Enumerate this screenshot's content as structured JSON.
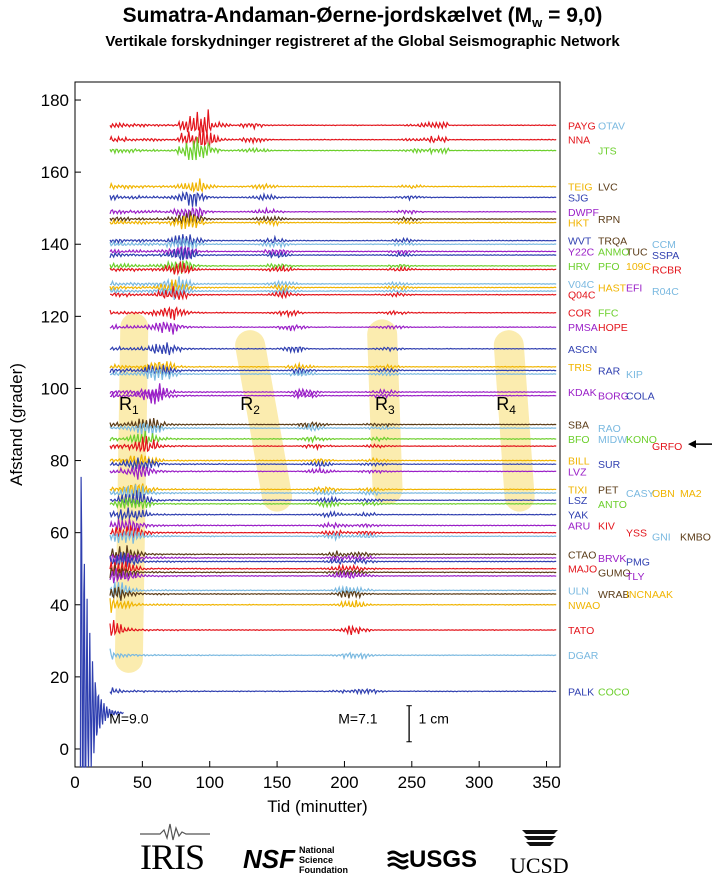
{
  "header": {
    "title_main": "Sumatra-Andaman-Øerne-jordskælvet (M",
    "title_sub": "w",
    "title_end": " = 9,0)",
    "subtitle": "Vertikale forskydninger registreret af the Global Seismographic Network"
  },
  "chart_data": {
    "type": "line",
    "xlabel": "Tid (minutter)",
    "ylabel": "Afstand (grader)",
    "xlim": [
      0,
      360
    ],
    "ylim": [
      -5,
      185
    ],
    "xticks": [
      0,
      50,
      100,
      150,
      200,
      250,
      300,
      350
    ],
    "yticks": [
      0,
      20,
      40,
      60,
      80,
      100,
      120,
      140,
      160,
      180
    ],
    "surface_waves": [
      {
        "label": "R",
        "sub": "1",
        "x": 40,
        "y": 94
      },
      {
        "label": "R",
        "sub": "2",
        "x": 130,
        "y": 94
      },
      {
        "label": "R",
        "sub": "3",
        "x": 230,
        "y": 94
      },
      {
        "label": "R",
        "sub": "4",
        "x": 320,
        "y": 94
      }
    ],
    "annotations": [
      {
        "text": "M=9.0",
        "x": 40,
        "y": 7
      },
      {
        "text": "M=7.1",
        "x": 210,
        "y": 7
      },
      {
        "text": "1 cm",
        "x": 255,
        "y": 7
      },
      {
        "text": "←",
        "x": 0,
        "y": 0
      }
    ],
    "stations": [
      {
        "name": "PAYG",
        "dist": 173,
        "color": "#e3141b",
        "col": 0
      },
      {
        "name": "OTAV",
        "dist": 173,
        "color": "#7ab9e0",
        "col": 1
      },
      {
        "name": "NNA",
        "dist": 169,
        "color": "#e3141b",
        "col": 0
      },
      {
        "name": "JTS",
        "dist": 166,
        "color": "#6ccf2c",
        "col": 1
      },
      {
        "name": "TEIG",
        "dist": 156,
        "color": "#f0b400",
        "col": 0
      },
      {
        "name": "LVC",
        "dist": 156,
        "color": "#5a3b17",
        "col": 1
      },
      {
        "name": "SJG",
        "dist": 153,
        "color": "#2f3fb0",
        "col": 0
      },
      {
        "name": "DWPF",
        "dist": 149,
        "color": "#9a1fc7",
        "col": 0
      },
      {
        "name": "RPN",
        "dist": 147,
        "color": "#5a3b17",
        "col": 1
      },
      {
        "name": "HKT",
        "dist": 146,
        "color": "#f0b400",
        "col": 0
      },
      {
        "name": "WVT",
        "dist": 141,
        "color": "#2f3fb0",
        "col": 0
      },
      {
        "name": "TRQA",
        "dist": 141,
        "color": "#5a3b17",
        "col": 1
      },
      {
        "name": "CCM",
        "dist": 140,
        "color": "#7ab9e0",
        "col": 3
      },
      {
        "name": "Y22C",
        "dist": 138,
        "color": "#9a1fc7",
        "col": 0
      },
      {
        "name": "ANMO",
        "dist": 138,
        "color": "#6ccf2c",
        "col": 1
      },
      {
        "name": "TUC",
        "dist": 138,
        "color": "#5a3b17",
        "col": 2
      },
      {
        "name": "SSPA",
        "dist": 137,
        "color": "#2f3fb0",
        "col": 3
      },
      {
        "name": "HRV",
        "dist": 134,
        "color": "#6ccf2c",
        "col": 0
      },
      {
        "name": "PFO",
        "dist": 134,
        "color": "#6ccf2c",
        "col": 1
      },
      {
        "name": "109C",
        "dist": 134,
        "color": "#f0b400",
        "col": 2
      },
      {
        "name": "RCBR",
        "dist": 133,
        "color": "#e3141b",
        "col": 3
      },
      {
        "name": "V04C",
        "dist": 129,
        "color": "#7ab9e0",
        "col": 0
      },
      {
        "name": "HAST",
        "dist": 128,
        "color": "#f0b400",
        "col": 1
      },
      {
        "name": "EFI",
        "dist": 128,
        "color": "#9a1fc7",
        "col": 2
      },
      {
        "name": "R04C",
        "dist": 127,
        "color": "#7ab9e0",
        "col": 3
      },
      {
        "name": "Q04C",
        "dist": 126,
        "color": "#e3141b",
        "col": 0
      },
      {
        "name": "COR",
        "dist": 121,
        "color": "#e3141b",
        "col": 0
      },
      {
        "name": "FFC",
        "dist": 121,
        "color": "#6ccf2c",
        "col": 1
      },
      {
        "name": "PMSA",
        "dist": 117,
        "color": "#9a1fc7",
        "col": 0
      },
      {
        "name": "HOPE",
        "dist": 117,
        "color": "#e3141b",
        "col": 1
      },
      {
        "name": "ASCN",
        "dist": 111,
        "color": "#2f3fb0",
        "col": 0
      },
      {
        "name": "TRIS",
        "dist": 106,
        "color": "#f0b400",
        "col": 0
      },
      {
        "name": "RAR",
        "dist": 105,
        "color": "#2f3fb0",
        "col": 1
      },
      {
        "name": "KIP",
        "dist": 104,
        "color": "#7ab9e0",
        "col": 2
      },
      {
        "name": "KDAK",
        "dist": 99,
        "color": "#9a1fc7",
        "col": 0
      },
      {
        "name": "BORG",
        "dist": 98,
        "color": "#9a1fc7",
        "col": 1
      },
      {
        "name": "COLA",
        "dist": 98,
        "color": "#2f3fb0",
        "col": 2
      },
      {
        "name": "SBA",
        "dist": 90,
        "color": "#5a3b17",
        "col": 0
      },
      {
        "name": "RAO",
        "dist": 89,
        "color": "#7ab9e0",
        "col": 1
      },
      {
        "name": "BFO",
        "dist": 86,
        "color": "#6ccf2c",
        "col": 0
      },
      {
        "name": "MIDW",
        "dist": 86,
        "color": "#7ab9e0",
        "col": 1
      },
      {
        "name": "KONO",
        "dist": 86,
        "color": "#6ccf2c",
        "col": 2
      },
      {
        "name": "GRFO",
        "dist": 84,
        "color": "#e3141b",
        "col": 3
      },
      {
        "name": "BILL",
        "dist": 80,
        "color": "#f0b400",
        "col": 0
      },
      {
        "name": "SUR",
        "dist": 79,
        "color": "#2f3fb0",
        "col": 1
      },
      {
        "name": "LVZ",
        "dist": 77,
        "color": "#9a1fc7",
        "col": 0
      },
      {
        "name": "TIXI",
        "dist": 72,
        "color": "#f0b400",
        "col": 0
      },
      {
        "name": "PET",
        "dist": 72,
        "color": "#5a3b17",
        "col": 1
      },
      {
        "name": "CASY",
        "dist": 71,
        "color": "#7ab9e0",
        "col": 2
      },
      {
        "name": "OBN",
        "dist": 71,
        "color": "#f0b400",
        "col": 3
      },
      {
        "name": "MA2",
        "dist": 71,
        "color": "#f0b400",
        "col": 4
      },
      {
        "name": "LSZ",
        "dist": 69,
        "color": "#2f3fb0",
        "col": 0
      },
      {
        "name": "ANTO",
        "dist": 68,
        "color": "#6ccf2c",
        "col": 1
      },
      {
        "name": "YAK",
        "dist": 65,
        "color": "#2f3fb0",
        "col": 0
      },
      {
        "name": "ARU",
        "dist": 62,
        "color": "#9a1fc7",
        "col": 0
      },
      {
        "name": "KIV",
        "dist": 62,
        "color": "#e3141b",
        "col": 1
      },
      {
        "name": "YSS",
        "dist": 60,
        "color": "#e3141b",
        "col": 2
      },
      {
        "name": "GNI",
        "dist": 59,
        "color": "#7ab9e0",
        "col": 3
      },
      {
        "name": "KMBO",
        "dist": 59,
        "color": "#5a3b17",
        "col": 4
      },
      {
        "name": "CTAO",
        "dist": 54,
        "color": "#5a3b17",
        "col": 0
      },
      {
        "name": "BRVK",
        "dist": 53,
        "color": "#9a1fc7",
        "col": 1
      },
      {
        "name": "PMG",
        "dist": 52,
        "color": "#2f3fb0",
        "col": 2
      },
      {
        "name": "MAJO",
        "dist": 50,
        "color": "#e3141b",
        "col": 0
      },
      {
        "name": "GUMO",
        "dist": 49,
        "color": "#5a3b17",
        "col": 1
      },
      {
        "name": "TLY",
        "dist": 48,
        "color": "#9a1fc7",
        "col": 2
      },
      {
        "name": "ULN",
        "dist": 44,
        "color": "#7ab9e0",
        "col": 0
      },
      {
        "name": "WRAB",
        "dist": 43,
        "color": "#5a3b17",
        "col": 1
      },
      {
        "name": "INCN",
        "dist": 43,
        "color": "#f0b400",
        "col": 2
      },
      {
        "name": "AAK",
        "dist": 43,
        "color": "#f0b400",
        "col": 3
      },
      {
        "name": "NWAO",
        "dist": 40,
        "color": "#f0b400",
        "col": 0
      },
      {
        "name": "TATO",
        "dist": 33,
        "color": "#e3141b",
        "col": 0
      },
      {
        "name": "DGAR",
        "dist": 26,
        "color": "#7ab9e0",
        "col": 0
      },
      {
        "name": "PALK",
        "dist": 16,
        "color": "#2f3fb0",
        "col": 0
      },
      {
        "name": "COCO",
        "dist": 16,
        "color": "#6ccf2c",
        "col": 1
      }
    ]
  },
  "logos": {
    "iris": "IRIS",
    "nsf_mark": "NSF",
    "nsf_line1": "National",
    "nsf_line2": "Science",
    "nsf_line3": "Foundation",
    "usgs": "USGS",
    "ucsd": "UCSD"
  }
}
